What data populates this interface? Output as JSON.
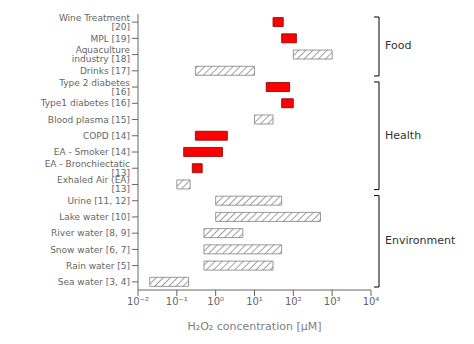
{
  "chart_data": {
    "type": "bar",
    "orientation": "horizontal",
    "log": "x",
    "xlabel": "H₂O₂ concentration [μM]",
    "categories": [
      "Wine Treatment [20]",
      "MPL [19]",
      "Aquaculture industry [18]",
      "Drinks [17]",
      "Type 2 diabetes [16]",
      "Type1 diabetes [16]",
      "Blood plasma [15]",
      "COPD [14]",
      "EA - Smoker [14]",
      "EA - Bronchiectatic [13]",
      "Exhaled Air (EA) [13]",
      "Urine [11, 12]",
      "Lake water [10]",
      "River water [8, 9]",
      "Snow water [6, 7]",
      "Rain water [5]",
      "Sea water [3, 4]"
    ],
    "values": [
      [
        30,
        55
      ],
      [
        50,
        120
      ],
      [
        100,
        1000
      ],
      [
        0.3,
        10
      ],
      [
        20,
        80
      ],
      [
        50,
        100
      ],
      [
        10,
        30
      ],
      [
        0.3,
        2.0
      ],
      [
        0.15,
        1.5
      ],
      [
        0.25,
        0.45
      ],
      [
        0.1,
        0.22
      ],
      [
        1.0,
        50
      ],
      [
        1.0,
        500
      ],
      [
        0.5,
        5.0
      ],
      [
        0.5,
        50
      ],
      [
        0.5,
        30
      ],
      [
        0.02,
        0.2
      ]
    ],
    "colors": [
      "red",
      "red",
      "gray",
      "gray",
      "red",
      "red",
      "gray",
      "red",
      "red",
      "red",
      "gray",
      "gray",
      "gray",
      "gray",
      "gray",
      "gray",
      "gray"
    ],
    "groups": [
      {
        "label": "Food",
        "first": "Wine Treatment [20]",
        "last": "Drinks [17]"
      },
      {
        "label": "Health",
        "first": "Type 2 diabetes [16]",
        "last": "Exhaled Air (EA) [13]"
      },
      {
        "label": "Environment",
        "first": "Urine [11, 12]",
        "last": "Sea water [3, 4]"
      }
    ],
    "xlim": [
      0.01,
      10000
    ],
    "xticks": [
      {
        "value": 0.01,
        "label": "10⁻²"
      },
      {
        "value": 0.1,
        "label": "10⁻¹"
      },
      {
        "value": 1,
        "label": "10⁰"
      },
      {
        "value": 10,
        "label": "10¹"
      },
      {
        "value": 100,
        "label": "10²"
      },
      {
        "value": 1000,
        "label": "10³"
      },
      {
        "value": 10000,
        "label": "10⁴"
      }
    ],
    "grid": false
  }
}
